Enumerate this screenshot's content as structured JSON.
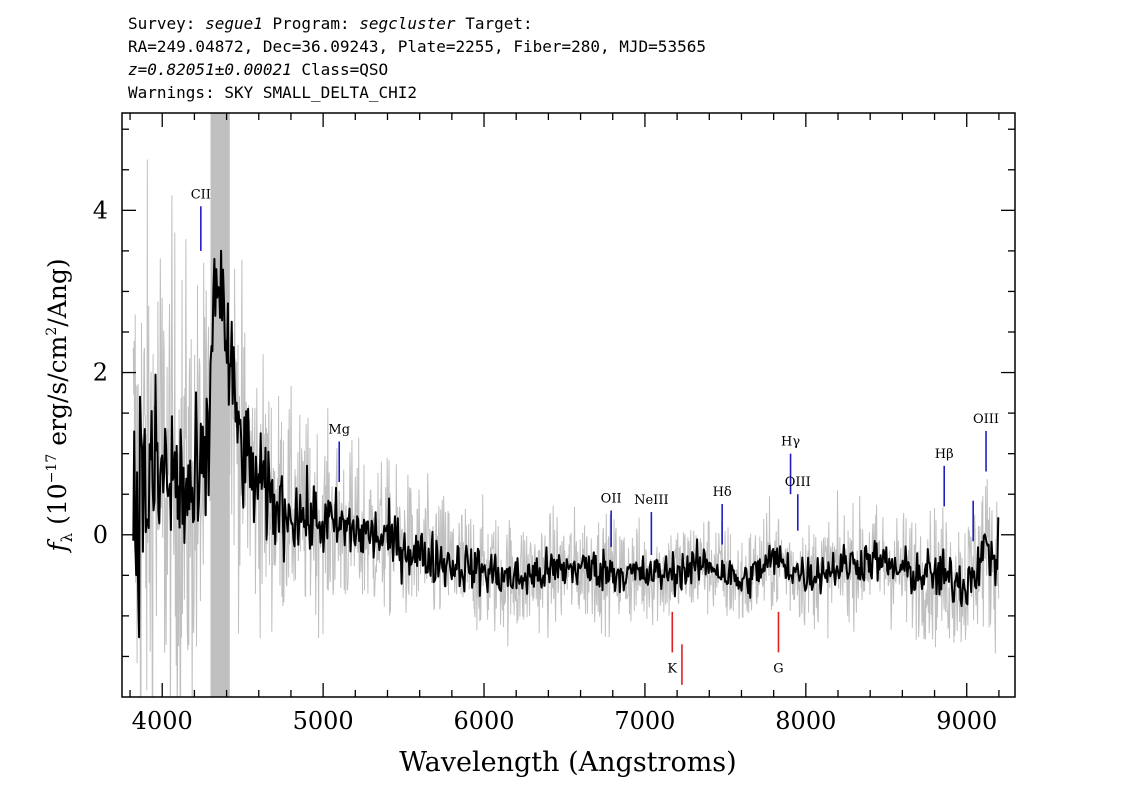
{
  "header": {
    "survey_label": "Survey:",
    "survey": "segue1",
    "program_label": "Program:",
    "program": "segcluster",
    "target_label": "Target:",
    "line2": "RA=249.04872, Dec=36.09243, Plate=2255, Fiber=280, MJD=53565",
    "redshift": "z=0.82051±0.00021",
    "class_text": "Class=QSO",
    "warnings": "Warnings: SKY SMALL_DELTA_CHI2"
  },
  "chart_data": {
    "type": "line",
    "xlabel": "Wavelength (Angstroms)",
    "ylabel": "f_λ (10^-17 erg/s/cm^2/Ang)",
    "xlim": [
      3750,
      9300
    ],
    "ylim": [
      -2.0,
      5.2
    ],
    "xticks": [
      4000,
      5000,
      6000,
      7000,
      8000,
      9000
    ],
    "xtick_labels": [
      "4000",
      "5000",
      "6000",
      "7000",
      "8000",
      "9000"
    ],
    "yticks": [
      0,
      2,
      4
    ],
    "ytick_labels": [
      "0",
      "2",
      "4"
    ],
    "masked_region": [
      4300,
      4420
    ],
    "series": [
      {
        "name": "flux",
        "color": "#000000",
        "x": [
          3820,
          3900,
          4000,
          4100,
          4200,
          4280,
          4330,
          4360,
          4400,
          4450,
          4500,
          4600,
          4700,
          4800,
          4900,
          5000,
          5200,
          5400,
          5600,
          5800,
          6000,
          6200,
          6400,
          6600,
          6800,
          7000,
          7200,
          7400,
          7600,
          7800,
          8000,
          8200,
          8400,
          8600,
          8800,
          9000,
          9100,
          9200
        ],
        "y": [
          0.4,
          0.6,
          0.7,
          0.6,
          0.4,
          0.8,
          3.3,
          3.1,
          2.3,
          1.6,
          1.0,
          0.6,
          0.35,
          0.3,
          0.2,
          0.15,
          0.05,
          -0.05,
          -0.25,
          -0.35,
          -0.45,
          -0.55,
          -0.45,
          -0.4,
          -0.45,
          -0.5,
          -0.45,
          -0.35,
          -0.6,
          -0.3,
          -0.5,
          -0.4,
          -0.3,
          -0.45,
          -0.5,
          -0.6,
          -0.2,
          -0.3
        ]
      },
      {
        "name": "noise",
        "color": "#c0c0c0",
        "x": [
          3820,
          4000,
          4200,
          4400,
          4600,
          4800,
          5000,
          5500,
          6000,
          6500,
          7000,
          7500,
          8000,
          8500,
          9000,
          9200
        ],
        "y": [
          3.0,
          2.6,
          2.2,
          1.7,
          1.3,
          1.0,
          0.9,
          0.7,
          0.6,
          0.55,
          0.5,
          0.5,
          0.5,
          0.55,
          0.7,
          0.8
        ]
      }
    ],
    "emission_lines": [
      {
        "label": "CII",
        "wavelength": 4240,
        "y_top": 4.05,
        "y_bottom": 3.5
      },
      {
        "label": "Mg",
        "wavelength": 5100,
        "y_top": 1.15,
        "y_bottom": 0.65
      },
      {
        "label": "OII",
        "wavelength": 6790,
        "y_top": 0.3,
        "y_bottom": -0.15
      },
      {
        "label": "NeIII",
        "wavelength": 7040,
        "y_top": 0.28,
        "y_bottom": -0.25
      },
      {
        "label": "Hδ",
        "wavelength": 7480,
        "y_top": 0.38,
        "y_bottom": -0.12
      },
      {
        "label": "Hγ",
        "wavelength": 7905,
        "y_top": 1.0,
        "y_bottom": 0.5
      },
      {
        "label": "OIII",
        "wavelength": 7950,
        "y_top": 0.5,
        "y_bottom": 0.05
      },
      {
        "label": "Hβ",
        "wavelength": 8860,
        "y_top": 0.85,
        "y_bottom": 0.35
      },
      {
        "label": "",
        "wavelength": 9040,
        "y_top": 0.42,
        "y_bottom": -0.08
      },
      {
        "label": "OIII",
        "wavelength": 9120,
        "y_top": 1.28,
        "y_bottom": 0.78
      }
    ],
    "absorption_lines": [
      {
        "label": "K",
        "wavelength": 7170,
        "y_top": -0.95,
        "y_bottom": -1.45
      },
      {
        "label": "",
        "wavelength": 7230,
        "y_top": -1.35,
        "y_bottom": -1.85
      },
      {
        "label": "G",
        "wavelength": 7830,
        "y_top": -0.95,
        "y_bottom": -1.45
      }
    ],
    "line_colors": {
      "emission": "#1f1fbf",
      "absorption": "#e02020"
    }
  }
}
